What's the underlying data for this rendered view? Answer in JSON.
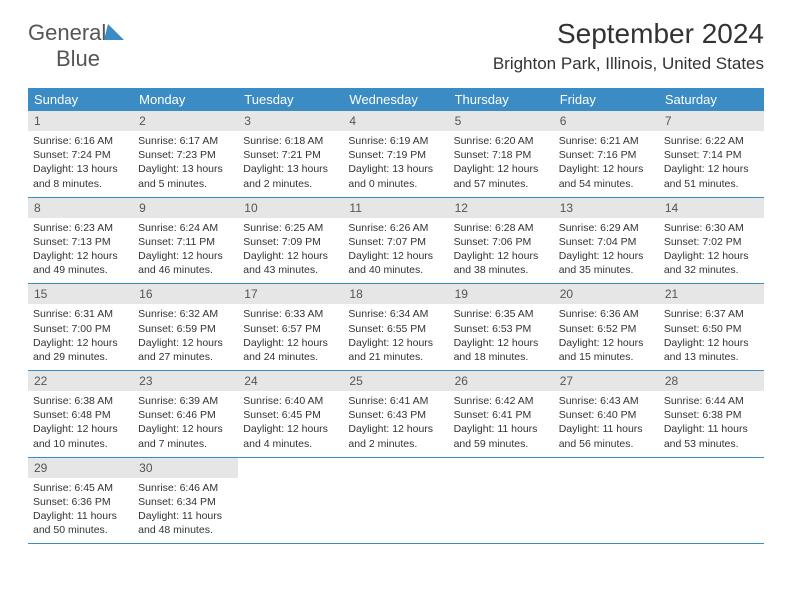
{
  "logo": {
    "part1": "General",
    "part2": "Blue"
  },
  "header": {
    "title": "September 2024",
    "location": "Brighton Park, Illinois, United States"
  },
  "colors": {
    "accent": "#3b8bc4",
    "dayHeader": "#e6e6e6",
    "text": "#333333",
    "background": "#ffffff"
  },
  "daysOfWeek": [
    "Sunday",
    "Monday",
    "Tuesday",
    "Wednesday",
    "Thursday",
    "Friday",
    "Saturday"
  ],
  "weeks": [
    [
      {
        "n": "1",
        "sunrise": "Sunrise: 6:16 AM",
        "sunset": "Sunset: 7:24 PM",
        "daylight": "Daylight: 13 hours and 8 minutes."
      },
      {
        "n": "2",
        "sunrise": "Sunrise: 6:17 AM",
        "sunset": "Sunset: 7:23 PM",
        "daylight": "Daylight: 13 hours and 5 minutes."
      },
      {
        "n": "3",
        "sunrise": "Sunrise: 6:18 AM",
        "sunset": "Sunset: 7:21 PM",
        "daylight": "Daylight: 13 hours and 2 minutes."
      },
      {
        "n": "4",
        "sunrise": "Sunrise: 6:19 AM",
        "sunset": "Sunset: 7:19 PM",
        "daylight": "Daylight: 13 hours and 0 minutes."
      },
      {
        "n": "5",
        "sunrise": "Sunrise: 6:20 AM",
        "sunset": "Sunset: 7:18 PM",
        "daylight": "Daylight: 12 hours and 57 minutes."
      },
      {
        "n": "6",
        "sunrise": "Sunrise: 6:21 AM",
        "sunset": "Sunset: 7:16 PM",
        "daylight": "Daylight: 12 hours and 54 minutes."
      },
      {
        "n": "7",
        "sunrise": "Sunrise: 6:22 AM",
        "sunset": "Sunset: 7:14 PM",
        "daylight": "Daylight: 12 hours and 51 minutes."
      }
    ],
    [
      {
        "n": "8",
        "sunrise": "Sunrise: 6:23 AM",
        "sunset": "Sunset: 7:13 PM",
        "daylight": "Daylight: 12 hours and 49 minutes."
      },
      {
        "n": "9",
        "sunrise": "Sunrise: 6:24 AM",
        "sunset": "Sunset: 7:11 PM",
        "daylight": "Daylight: 12 hours and 46 minutes."
      },
      {
        "n": "10",
        "sunrise": "Sunrise: 6:25 AM",
        "sunset": "Sunset: 7:09 PM",
        "daylight": "Daylight: 12 hours and 43 minutes."
      },
      {
        "n": "11",
        "sunrise": "Sunrise: 6:26 AM",
        "sunset": "Sunset: 7:07 PM",
        "daylight": "Daylight: 12 hours and 40 minutes."
      },
      {
        "n": "12",
        "sunrise": "Sunrise: 6:28 AM",
        "sunset": "Sunset: 7:06 PM",
        "daylight": "Daylight: 12 hours and 38 minutes."
      },
      {
        "n": "13",
        "sunrise": "Sunrise: 6:29 AM",
        "sunset": "Sunset: 7:04 PM",
        "daylight": "Daylight: 12 hours and 35 minutes."
      },
      {
        "n": "14",
        "sunrise": "Sunrise: 6:30 AM",
        "sunset": "Sunset: 7:02 PM",
        "daylight": "Daylight: 12 hours and 32 minutes."
      }
    ],
    [
      {
        "n": "15",
        "sunrise": "Sunrise: 6:31 AM",
        "sunset": "Sunset: 7:00 PM",
        "daylight": "Daylight: 12 hours and 29 minutes."
      },
      {
        "n": "16",
        "sunrise": "Sunrise: 6:32 AM",
        "sunset": "Sunset: 6:59 PM",
        "daylight": "Daylight: 12 hours and 27 minutes."
      },
      {
        "n": "17",
        "sunrise": "Sunrise: 6:33 AM",
        "sunset": "Sunset: 6:57 PM",
        "daylight": "Daylight: 12 hours and 24 minutes."
      },
      {
        "n": "18",
        "sunrise": "Sunrise: 6:34 AM",
        "sunset": "Sunset: 6:55 PM",
        "daylight": "Daylight: 12 hours and 21 minutes."
      },
      {
        "n": "19",
        "sunrise": "Sunrise: 6:35 AM",
        "sunset": "Sunset: 6:53 PM",
        "daylight": "Daylight: 12 hours and 18 minutes."
      },
      {
        "n": "20",
        "sunrise": "Sunrise: 6:36 AM",
        "sunset": "Sunset: 6:52 PM",
        "daylight": "Daylight: 12 hours and 15 minutes."
      },
      {
        "n": "21",
        "sunrise": "Sunrise: 6:37 AM",
        "sunset": "Sunset: 6:50 PM",
        "daylight": "Daylight: 12 hours and 13 minutes."
      }
    ],
    [
      {
        "n": "22",
        "sunrise": "Sunrise: 6:38 AM",
        "sunset": "Sunset: 6:48 PM",
        "daylight": "Daylight: 12 hours and 10 minutes."
      },
      {
        "n": "23",
        "sunrise": "Sunrise: 6:39 AM",
        "sunset": "Sunset: 6:46 PM",
        "daylight": "Daylight: 12 hours and 7 minutes."
      },
      {
        "n": "24",
        "sunrise": "Sunrise: 6:40 AM",
        "sunset": "Sunset: 6:45 PM",
        "daylight": "Daylight: 12 hours and 4 minutes."
      },
      {
        "n": "25",
        "sunrise": "Sunrise: 6:41 AM",
        "sunset": "Sunset: 6:43 PM",
        "daylight": "Daylight: 12 hours and 2 minutes."
      },
      {
        "n": "26",
        "sunrise": "Sunrise: 6:42 AM",
        "sunset": "Sunset: 6:41 PM",
        "daylight": "Daylight: 11 hours and 59 minutes."
      },
      {
        "n": "27",
        "sunrise": "Sunrise: 6:43 AM",
        "sunset": "Sunset: 6:40 PM",
        "daylight": "Daylight: 11 hours and 56 minutes."
      },
      {
        "n": "28",
        "sunrise": "Sunrise: 6:44 AM",
        "sunset": "Sunset: 6:38 PM",
        "daylight": "Daylight: 11 hours and 53 minutes."
      }
    ],
    [
      {
        "n": "29",
        "sunrise": "Sunrise: 6:45 AM",
        "sunset": "Sunset: 6:36 PM",
        "daylight": "Daylight: 11 hours and 50 minutes."
      },
      {
        "n": "30",
        "sunrise": "Sunrise: 6:46 AM",
        "sunset": "Sunset: 6:34 PM",
        "daylight": "Daylight: 11 hours and 48 minutes."
      },
      null,
      null,
      null,
      null,
      null
    ]
  ]
}
